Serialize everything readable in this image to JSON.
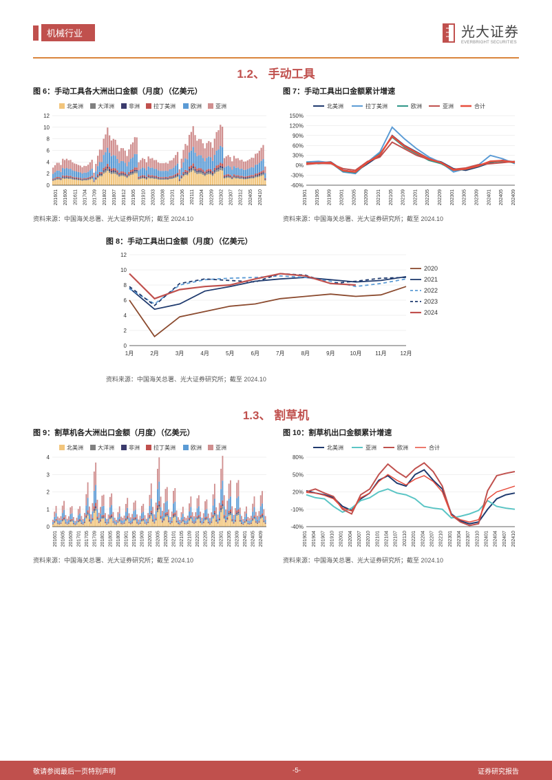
{
  "header": {
    "tag": "机械行业",
    "brand": "光大证券",
    "brand_en": "EVERBRIGHT SECURITIES"
  },
  "section12": "1.2、 手动工具",
  "section13": "1.3、 割草机",
  "source": "资料来源：中国海关总署、光大证券研究所；截至 2024.10",
  "footer": {
    "left": "敬请参阅最后一页特别声明",
    "center": "-5-",
    "right": "证券研究报告"
  },
  "chart6": {
    "title": "图 6：手动工具各大洲出口金额（月度）（亿美元）",
    "type": "stacked-bar",
    "legend": [
      "北美洲",
      "大洋洲",
      "非洲",
      "拉丁美洲",
      "欧洲",
      "亚洲"
    ],
    "colors": [
      "#f2c57c",
      "#808080",
      "#3b3b6d",
      "#c0504d",
      "#5b9bd5",
      "#d08f8f"
    ],
    "xlabels": [
      "201601",
      "201606",
      "201611",
      "201704",
      "201709",
      "201802",
      "201807",
      "201812",
      "201905",
      "201910",
      "202003",
      "202008",
      "202101",
      "202106",
      "202111",
      "202204",
      "202209",
      "202302",
      "202307",
      "202312",
      "202405",
      "202410"
    ],
    "ylim": [
      0,
      12
    ],
    "ytick_step": 2,
    "background_color": "#ffffff",
    "grid_color": "#e0e0e0",
    "label_fontsize": 8,
    "values": [
      3.8,
      4.0,
      4.2,
      4.0,
      3.5,
      4.5,
      4.3,
      4.6,
      4.5,
      4.8,
      4.6,
      4.7,
      4.9,
      5.0,
      5.1,
      4.8,
      5.2,
      5.0,
      5.1,
      5.3,
      5.5,
      2.5,
      4.0,
      5.2,
      6.0,
      5.8,
      7.5,
      8.2,
      9.5,
      8.5,
      8.0,
      8.8,
      9.2,
      8.7,
      7.8,
      8.9,
      9.1,
      8.5,
      7.0,
      8.2,
      8.8,
      8.6,
      9.0,
      8.4
    ]
  },
  "chart7": {
    "title": "图 7：手动工具出口金额累计增速",
    "type": "line",
    "legend": [
      "北美洲",
      "拉丁美洲",
      "欧洲",
      "亚洲",
      "合计"
    ],
    "colors": [
      "#1f3a6e",
      "#5b9bd5",
      "#2e9688",
      "#c0504d",
      "#e74c3c"
    ],
    "line_widths": [
      2,
      2,
      2,
      2,
      2.5
    ],
    "xlabels": [
      "201901",
      "201905",
      "201909",
      "202001",
      "202005",
      "202009",
      "202101",
      "202105",
      "202109",
      "202201",
      "202205",
      "202209",
      "202301",
      "202305",
      "202309",
      "202401",
      "202405",
      "202409"
    ],
    "ylim": [
      -60,
      150
    ],
    "ytick_step": 30,
    "background_color": "#ffffff",
    "grid_color": "#e0e0e0",
    "label_fontsize": 8,
    "series": {
      "北美洲": [
        5,
        8,
        10,
        -15,
        -20,
        5,
        30,
        90,
        60,
        40,
        20,
        10,
        -10,
        -15,
        -5,
        8,
        15,
        10
      ],
      "拉丁美洲": [
        10,
        12,
        8,
        -20,
        -25,
        10,
        40,
        115,
        80,
        50,
        25,
        8,
        -20,
        -10,
        0,
        30,
        20,
        5
      ],
      "欧洲": [
        8,
        5,
        7,
        -18,
        -22,
        8,
        35,
        85,
        55,
        35,
        15,
        5,
        -15,
        -12,
        -3,
        10,
        12,
        8
      ],
      "亚洲": [
        3,
        6,
        5,
        -10,
        -15,
        12,
        25,
        70,
        50,
        30,
        18,
        8,
        -12,
        -8,
        2,
        5,
        8,
        12
      ],
      "合计": [
        6,
        7,
        8,
        -16,
        -20,
        9,
        32,
        88,
        58,
        38,
        19,
        8,
        -14,
        -11,
        -2,
        12,
        14,
        9
      ]
    }
  },
  "chart8": {
    "title": "图 8：手动工具出口金额（月度）（亿美元）",
    "type": "line",
    "legend": [
      "2020",
      "2021",
      "2022",
      "2023",
      "2024"
    ],
    "colors": [
      "#8b4a2e",
      "#1f3a6e",
      "#5b9bd5",
      "#1f3a6e",
      "#c0504d"
    ],
    "dashes": [
      "solid",
      "solid",
      "dash",
      "dash",
      "solid"
    ],
    "line_widths": [
      1.8,
      1.8,
      1.8,
      1.8,
      2.2
    ],
    "xlabels": [
      "1月",
      "2月",
      "3月",
      "4月",
      "5月",
      "6月",
      "7月",
      "8月",
      "9月",
      "10月",
      "11月",
      "12月"
    ],
    "ylim": [
      0,
      12
    ],
    "ytick_step": 2,
    "background_color": "#ffffff",
    "grid_color": "#e0e0e0",
    "label_fontsize": 9,
    "series": {
      "2020": [
        6.0,
        1.2,
        3.8,
        4.5,
        5.2,
        5.5,
        6.2,
        6.5,
        6.8,
        6.5,
        6.7,
        7.8
      ],
      "2021": [
        7.6,
        4.8,
        5.5,
        7.2,
        7.8,
        8.5,
        8.8,
        9.0,
        8.7,
        8.4,
        8.6,
        9.1
      ],
      "2022": [
        7.5,
        5.5,
        8.0,
        8.7,
        8.9,
        9.0,
        9.2,
        9.0,
        8.5,
        7.8,
        8.2,
        8.8
      ],
      "2023": [
        7.8,
        5.3,
        8.2,
        8.8,
        8.6,
        8.4,
        9.5,
        9.3,
        8.2,
        8.5,
        8.9,
        9.0
      ],
      "2024": [
        9.5,
        6.2,
        7.4,
        7.8,
        8.0,
        8.8,
        9.5,
        9.2,
        8.2,
        8.0,
        null,
        null
      ]
    }
  },
  "chart9": {
    "title": "图 9：割草机各大洲出口金额（月度）（亿美元）",
    "type": "stacked-bar",
    "legend": [
      "北美洲",
      "大洋洲",
      "非洲",
      "拉丁美洲",
      "欧洲",
      "亚洲"
    ],
    "colors": [
      "#f2c57c",
      "#808080",
      "#3b3b6d",
      "#c0504d",
      "#5b9bd5",
      "#d08f8f"
    ],
    "xlabels": [
      "201601",
      "201605",
      "201609",
      "201701",
      "201705",
      "201709",
      "201801",
      "201805",
      "201809",
      "201901",
      "201905",
      "201909",
      "202001",
      "202005",
      "202009",
      "202101",
      "202105",
      "202109",
      "202201",
      "202205",
      "202209",
      "202301",
      "202305",
      "202309",
      "202401",
      "202405",
      "202409"
    ],
    "ylim": [
      0,
      4
    ],
    "ytick_step": 1,
    "background_color": "#ffffff",
    "grid_color": "#e0e0e0",
    "label_fontsize": 8,
    "values": [
      0.5,
      1.0,
      1.3,
      0.6,
      0.5,
      0.6,
      1.2,
      1.5,
      0.7,
      0.5,
      0.7,
      1.4,
      1.6,
      0.8,
      0.5,
      0.8,
      1.6,
      1.8,
      0.9,
      0.6,
      1.0,
      2.2,
      2.8,
      1.2,
      0.7,
      1.3,
      3.0,
      3.5,
      1.5,
      0.8,
      1.2,
      2.0,
      2.2,
      1.0,
      0.6,
      1.0,
      2.5,
      2.8,
      1.2,
      0.7
    ]
  },
  "chart10": {
    "title": "图 10：割草机出口金额累计增速",
    "type": "line",
    "legend": [
      "北美洲",
      "亚洲",
      "欧洲",
      "合计"
    ],
    "colors": [
      "#1f3a6e",
      "#5bc5c5",
      "#c0504d",
      "#e74c3c"
    ],
    "line_widths": [
      2,
      2,
      2,
      1.5
    ],
    "xlabels": [
      "201901",
      "201904",
      "201907",
      "201910",
      "202001",
      "202004",
      "202007",
      "202010",
      "202101",
      "202104",
      "202107",
      "202110",
      "202201",
      "202204",
      "202207",
      "202210",
      "202301",
      "202304",
      "202307",
      "202310",
      "202401",
      "202404",
      "202407",
      "202410"
    ],
    "ylim": [
      -40,
      80
    ],
    "ytick_step": 30,
    "background_color": "#ffffff",
    "grid_color": "#e0e0e0",
    "label_fontsize": 8,
    "series": {
      "北美洲": [
        22,
        18,
        15,
        10,
        -5,
        -12,
        8,
        18,
        40,
        48,
        35,
        30,
        50,
        58,
        40,
        25,
        -18,
        -30,
        -35,
        -32,
        -10,
        8,
        15,
        18
      ],
      "亚洲": [
        15,
        10,
        8,
        -5,
        -15,
        -8,
        5,
        10,
        20,
        25,
        18,
        15,
        8,
        -5,
        -8,
        -10,
        -25,
        -22,
        -18,
        -12,
        5,
        -5,
        -8,
        -10
      ],
      "欧洲": [
        20,
        25,
        18,
        12,
        -10,
        -18,
        15,
        25,
        50,
        68,
        55,
        45,
        60,
        70,
        55,
        30,
        -20,
        -32,
        -38,
        -35,
        22,
        48,
        52,
        55
      ],
      "合计": [
        19,
        18,
        14,
        8,
        -8,
        -13,
        10,
        18,
        38,
        50,
        40,
        32,
        42,
        48,
        38,
        20,
        -20,
        -28,
        -32,
        -28,
        8,
        20,
        25,
        30
      ]
    }
  }
}
